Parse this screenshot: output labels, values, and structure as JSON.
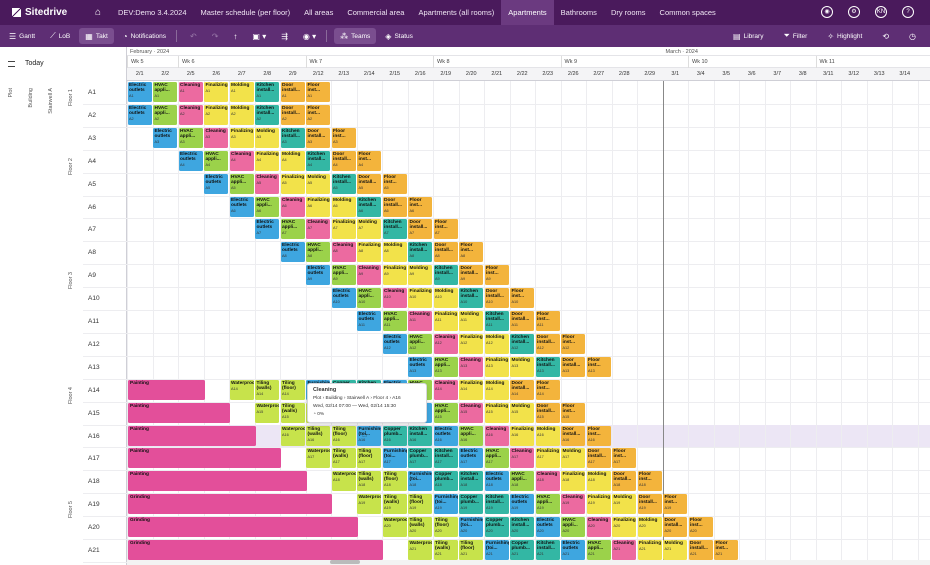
{
  "app": {
    "brand": "Sitedrive"
  },
  "nav": {
    "tabs": [
      "DEV:Demo 3.4.2024",
      "Master schedule (per floor)",
      "All areas",
      "Commercial area",
      "Apartments (all rooms)",
      "Apartments",
      "Bathrooms",
      "Dry rooms",
      "Common spaces"
    ],
    "active_index": 5,
    "user_initials": "KN"
  },
  "toolbar": {
    "gantt": "Gantt",
    "lob": "LoB",
    "takt": "Takt",
    "notifications": "Notifications",
    "teams": "Teams",
    "status": "Status",
    "library": "Library",
    "filter": "Filter",
    "highlight": "Highlight"
  },
  "today_label": "Today",
  "timeline": {
    "months": [
      {
        "label": "February · 2024",
        "col": 0
      },
      {
        "label": "March · 2024",
        "col": 21
      }
    ],
    "weeks": [
      {
        "label": "Wk 5",
        "col": 0
      },
      {
        "label": "Wk 6",
        "col": 2
      },
      {
        "label": "Wk 7",
        "col": 7
      },
      {
        "label": "Wk 8",
        "col": 12
      },
      {
        "label": "Wk 9",
        "col": 17
      },
      {
        "label": "Wk 10",
        "col": 22
      },
      {
        "label": "Wk 11",
        "col": 27
      }
    ],
    "days": [
      "2/1",
      "2/2",
      "2/5",
      "2/6",
      "2/7",
      "2/8",
      "2/9",
      "2/12",
      "2/13",
      "2/14",
      "2/15",
      "2/16",
      "2/19",
      "2/20",
      "2/21",
      "2/22",
      "2/23",
      "2/26",
      "2/27",
      "2/28",
      "2/29",
      "3/1",
      "3/4",
      "3/5",
      "3/6",
      "3/7",
      "3/8",
      "3/11",
      "3/12",
      "3/13",
      "3/14"
    ]
  },
  "hierarchy": {
    "plot": "Plot",
    "building": "Building",
    "stairwell": "Stairwell A",
    "floors": [
      {
        "label": "Floor 1",
        "row": 0
      },
      {
        "label": "Floor 2",
        "row": 3
      },
      {
        "label": "Floor 3",
        "row": 8
      },
      {
        "label": "Floor 4",
        "row": 13
      },
      {
        "label": "Floor 5",
        "row": 18
      }
    ],
    "rows": [
      "A1",
      "A2",
      "A3",
      "A4",
      "A5",
      "A6",
      "A7",
      "A8",
      "A9",
      "A10",
      "A11",
      "A12",
      "A13",
      "A14",
      "A15",
      "A16",
      "A17",
      "A18",
      "A19",
      "A20",
      "A21"
    ]
  },
  "tasks": [
    {
      "name": "Electric outlets",
      "color": "#3ea6e0"
    },
    {
      "name": "HVAC appli...",
      "color": "#9bd24a"
    },
    {
      "name": "Cleaning",
      "color": "#ec6aa0"
    },
    {
      "name": "Finalizing",
      "color": "#f2e24a"
    },
    {
      "name": "Molding",
      "color": "#f2e24a"
    },
    {
      "name": "Kitchen install...",
      "color": "#33b7a4"
    },
    {
      "name": "Door install...",
      "color": "#f3b43c"
    },
    {
      "name": "Floor inst...",
      "color": "#f3b43c"
    },
    {
      "name": "Copper plumb...",
      "color": "#33b7a4"
    },
    {
      "name": "Furnishing (toi...",
      "color": "#3ea6e0"
    },
    {
      "name": "Tiling (floor)",
      "color": "#c7e34b"
    },
    {
      "name": "Tiling (walls)",
      "color": "#c7e34b"
    },
    {
      "name": "Waterproofing",
      "color": "#c7e34b"
    },
    {
      "name": "Painting",
      "color": "#e34f9a"
    },
    {
      "name": "Grinding",
      "color": "#e34f9a"
    }
  ],
  "tooltip": {
    "title": "Cleaning",
    "path": "Plot › Building › Stairwell A › Floor 4 › A16",
    "dates": "Wed, 02/14 07:00 — Wed, 02/14 15:30",
    "progress": "0%"
  }
}
